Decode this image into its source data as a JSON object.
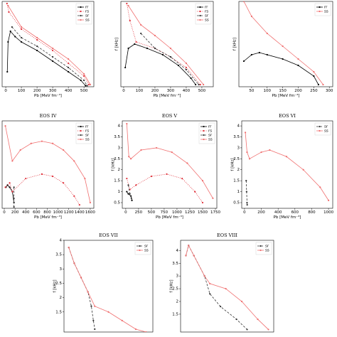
{
  "chart_data": [
    {
      "type": "line",
      "x_label": "Pb [MeV fm⁻³]",
      "xlim": [
        -23,
        563
      ],
      "ylim": [
        0.5,
        4.5
      ],
      "xticks": [
        0,
        100,
        200,
        300,
        400,
        500
      ],
      "series": [
        {
          "name": "rr",
          "color": "#000000",
          "dash": "none",
          "x": [
            10,
            15,
            30,
            60,
            100,
            200,
            300,
            400,
            480,
            510
          ],
          "y": [
            1.2,
            2.6,
            3.1,
            2.85,
            2.6,
            2.2,
            1.7,
            1.2,
            0.8,
            0.55
          ]
        },
        {
          "name": "rs",
          "color": "#e0303a",
          "dash": "1,1.5",
          "x": [
            8,
            20,
            100,
            200,
            300,
            400,
            500,
            530
          ],
          "y": [
            4.4,
            4.0,
            3.2,
            2.7,
            2.2,
            1.6,
            1.0,
            0.6
          ]
        },
        {
          "name": "sr",
          "color": "#333333",
          "dash": "3,2",
          "x": [
            40,
            100,
            200,
            300,
            400,
            500,
            520
          ],
          "y": [
            3.3,
            2.8,
            2.4,
            1.9,
            1.4,
            0.8,
            0.55
          ]
        },
        {
          "name": "ss",
          "color": "#f07070",
          "dash": "none",
          "x": [
            15,
            100,
            200,
            300,
            400,
            500,
            540
          ],
          "y": [
            4.3,
            3.3,
            2.8,
            2.3,
            1.8,
            1.1,
            0.6
          ]
        }
      ]
    },
    {
      "type": "line",
      "x_label": "Pb [MeV fm⁻³]",
      "y_label": "f [kHz]",
      "xlim": [
        -18,
        573
      ],
      "ylim": [
        0.5,
        4.5
      ],
      "xticks": [
        0,
        100,
        200,
        300,
        400,
        500
      ],
      "series": [
        {
          "name": "rr",
          "color": "#000000",
          "dash": "none",
          "x": [
            10,
            30,
            70,
            150,
            250,
            350,
            430,
            460
          ],
          "y": [
            1.4,
            2.3,
            2.5,
            2.3,
            2.0,
            1.5,
            0.9,
            0.6
          ]
        },
        {
          "name": "rs",
          "color": "#e0303a",
          "dash": "1,1.5",
          "x": [
            20,
            40,
            80,
            200,
            300,
            400,
            490
          ],
          "y": [
            4.4,
            3.6,
            2.6,
            2.3,
            1.9,
            1.4,
            0.6
          ]
        },
        {
          "name": "sr",
          "color": "#333333",
          "dash": "3,2",
          "x": [
            110,
            200,
            300,
            400,
            480
          ],
          "y": [
            3.0,
            2.3,
            1.9,
            1.3,
            0.6
          ]
        },
        {
          "name": "ss",
          "color": "#f07070",
          "dash": "none",
          "x": [
            30,
            110,
            200,
            300,
            400,
            510
          ],
          "y": [
            4.3,
            3.4,
            2.9,
            2.3,
            1.6,
            0.6
          ]
        }
      ]
    },
    {
      "type": "line",
      "x_label": "Pb [MeV fm⁻³]",
      "y_label": "f [kHz]",
      "xlim": [
        9,
        311
      ],
      "ylim": [
        0.5,
        4.5
      ],
      "xticks": [
        50,
        100,
        150,
        200,
        250,
        300
      ],
      "series": [
        {
          "name": "rr",
          "color": "#000000",
          "dash": "none",
          "x": [
            25,
            50,
            75,
            100,
            150,
            200,
            250,
            265
          ],
          "y": [
            1.7,
            2.0,
            2.1,
            2.0,
            1.8,
            1.5,
            1.0,
            0.6
          ]
        },
        {
          "name": "ss",
          "color": "#f07070",
          "dash": "none",
          "x": [
            25,
            50,
            100,
            150,
            200,
            250,
            280
          ],
          "y": [
            4.5,
            3.8,
            3.0,
            2.4,
            1.8,
            1.2,
            0.6
          ]
        }
      ]
    },
    {
      "type": "line",
      "title": "EOS IV",
      "x_label": "Pb [MeV fm⁻³]",
      "xlim": [
        -40,
        1667
      ],
      "ylim": [
        0.24,
        4.23
      ],
      "xticks": [
        0,
        200,
        400,
        600,
        800,
        1000,
        1200,
        1400,
        1600
      ],
      "series": [
        {
          "name": "rr",
          "color": "#000000",
          "dash": "none",
          "x": [
            30,
            60,
            100,
            150,
            180
          ],
          "y": [
            1.2,
            1.3,
            1.2,
            1.0,
            0.5
          ]
        },
        {
          "name": "rs",
          "color": "#e0303a",
          "dash": "1,1.5",
          "x": [
            20,
            100,
            150,
            400,
            700,
            900,
            1100,
            1300,
            1400
          ],
          "y": [
            1.2,
            1.4,
            1.0,
            1.6,
            1.8,
            1.7,
            1.4,
            0.8,
            0.4
          ]
        },
        {
          "name": "sr",
          "color": "#333333",
          "dash": "3,2",
          "x": [
            180,
            180,
            180
          ],
          "y": [
            1.2,
            0.7,
            0.3
          ]
        },
        {
          "name": "ss",
          "color": "#f07070",
          "dash": "none",
          "x": [
            20,
            150,
            300,
            500,
            700,
            900,
            1100,
            1300,
            1500,
            1600
          ],
          "y": [
            4.0,
            2.4,
            2.9,
            3.2,
            3.3,
            3.2,
            2.9,
            2.4,
            1.6,
            0.5
          ]
        }
      ]
    },
    {
      "type": "line",
      "title": "EOS V",
      "x_label": "Pb [MeV fm⁻³]",
      "y_label": "f [kHz]",
      "xlim": [
        -68,
        1778
      ],
      "ylim": [
        0.24,
        4.23
      ],
      "xticks": [
        0,
        250,
        500,
        750,
        1000,
        1250,
        1500,
        1750
      ],
      "yticks": [
        0.5,
        1.0,
        1.5,
        2.0,
        2.5,
        3.0,
        3.5,
        4.0
      ],
      "series": [
        {
          "name": "rr",
          "color": "#000000",
          "dash": "none",
          "x": [
            20,
            50,
            100,
            120
          ],
          "y": [
            1.0,
            0.9,
            0.8,
            0.6
          ]
        },
        {
          "name": "rs",
          "color": "#e0303a",
          "dash": "1,1.5",
          "x": [
            20,
            80,
            200,
            500,
            800,
            1100,
            1350,
            1500
          ],
          "y": [
            1.6,
            1.1,
            1.3,
            1.7,
            1.8,
            1.6,
            1.0,
            0.5
          ]
        },
        {
          "name": "sr",
          "color": "#333333",
          "dash": "3,2",
          "x": [
            50,
            80,
            110
          ],
          "y": [
            1.3,
            0.9,
            0.7
          ]
        },
        {
          "name": "ss",
          "color": "#f07070",
          "dash": "none",
          "x": [
            20,
            60,
            100,
            300,
            600,
            900,
            1200,
            1500,
            1700
          ],
          "y": [
            4.1,
            2.6,
            2.5,
            2.9,
            3.0,
            2.8,
            2.3,
            1.5,
            0.7
          ]
        }
      ]
    },
    {
      "type": "line",
      "title": "EOS VI",
      "x_label": "Pb [MeV fm⁻³]",
      "y_label": "f [kHz]",
      "xlim": [
        -33,
        1050
      ],
      "ylim": [
        0.24,
        4.23
      ],
      "xticks": [
        0,
        200,
        400,
        600,
        800,
        1000
      ],
      "yticks": [
        0.5,
        1.0,
        1.5,
        2.0,
        2.5,
        3.0,
        3.5,
        4.0
      ],
      "series": [
        {
          "name": "sr",
          "color": "#333333",
          "dash": "3,2",
          "x": [
            20,
            25,
            30,
            32
          ],
          "y": [
            1.5,
            1.0,
            0.5,
            0.4
          ]
        },
        {
          "name": "ss",
          "color": "#f07070",
          "dash": "none",
          "x": [
            10,
            30,
            60,
            200,
            300,
            500,
            700,
            900,
            1000
          ],
          "y": [
            3.7,
            2.8,
            2.5,
            2.8,
            2.9,
            2.6,
            2.0,
            1.2,
            0.6
          ]
        }
      ]
    },
    {
      "type": "line",
      "title": "EOS VII",
      "y_label": "f [kHz]",
      "xlim": [
        -500,
        12500
      ],
      "ylim": [
        0.8,
        4.0
      ],
      "yticks": [
        1.5,
        2.0,
        2.5,
        3.0,
        3.5,
        4.0
      ],
      "series": [
        {
          "name": "sr",
          "color": "#333333",
          "dash": "3,2",
          "x": [
            200,
            1000,
            2000,
            3000,
            3500,
            3800,
            4000
          ],
          "y": [
            3.75,
            3.2,
            2.7,
            2.2,
            1.7,
            1.2,
            0.9
          ]
        },
        {
          "name": "ss",
          "color": "#f07070",
          "dash": "none",
          "x": [
            200,
            1000,
            2000,
            3000,
            4000,
            6000,
            8000,
            10000,
            11500
          ],
          "y": [
            3.75,
            3.2,
            2.7,
            2.2,
            1.7,
            1.5,
            1.2,
            0.9,
            0.8
          ]
        }
      ]
    },
    {
      "type": "line",
      "title": "EOS VIII",
      "y_label": "f [kHz]",
      "xlim": [
        -500,
        17000
      ],
      "ylim": [
        0.8,
        4.4
      ],
      "yticks": [
        1.5,
        2.0,
        2.5,
        3.0,
        3.5,
        4.0
      ],
      "series": [
        {
          "name": "sr",
          "color": "#333333",
          "dash": "3,2",
          "x": [
            500,
            1000,
            2000,
            4000,
            5000,
            7000,
            10000,
            12000
          ],
          "y": [
            3.8,
            4.2,
            3.8,
            3.0,
            2.3,
            1.8,
            1.3,
            0.9
          ]
        },
        {
          "name": "ss",
          "color": "#f07070",
          "dash": "none",
          "x": [
            500,
            1000,
            2000,
            4000,
            5000,
            8000,
            11000,
            14000,
            16000
          ],
          "y": [
            3.8,
            4.2,
            3.8,
            3.0,
            2.7,
            2.5,
            2.0,
            1.3,
            0.9
          ]
        }
      ]
    }
  ]
}
